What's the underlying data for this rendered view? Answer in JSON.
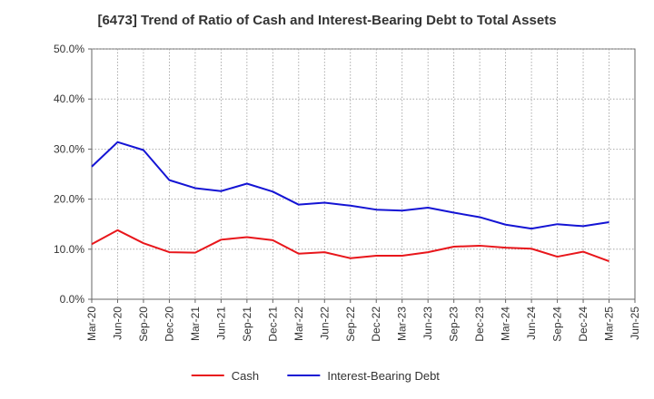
{
  "chart_data": {
    "type": "line",
    "title": "[6473]  Trend of Ratio of Cash and Interest-Bearing Debt to Total Assets",
    "xlabel": "",
    "ylabel": "",
    "categories": [
      "Mar-20",
      "Jun-20",
      "Sep-20",
      "Dec-20",
      "Mar-21",
      "Jun-21",
      "Sep-21",
      "Dec-21",
      "Mar-22",
      "Jun-22",
      "Sep-22",
      "Dec-22",
      "Mar-23",
      "Jun-23",
      "Sep-23",
      "Dec-23",
      "Mar-24",
      "Jun-24",
      "Sep-24",
      "Dec-24",
      "Mar-25",
      "Jun-25"
    ],
    "ylim": [
      0,
      50
    ],
    "yticks": [
      0,
      10,
      20,
      30,
      40,
      50
    ],
    "ytick_labels": [
      "0.0%",
      "10.0%",
      "20.0%",
      "30.0%",
      "40.0%",
      "50.0%"
    ],
    "grid": true,
    "legend_position": "bottom",
    "series": [
      {
        "name": "Cash",
        "color": "#e8161b",
        "values": [
          11.0,
          13.8,
          11.2,
          9.4,
          9.3,
          11.9,
          12.4,
          11.8,
          9.1,
          9.4,
          8.2,
          8.7,
          8.7,
          9.4,
          10.5,
          10.7,
          10.3,
          10.1,
          8.5,
          9.5,
          7.6,
          null
        ]
      },
      {
        "name": "Interest-Bearing Debt",
        "color": "#1414d4",
        "values": [
          26.5,
          31.4,
          29.8,
          23.8,
          22.2,
          21.6,
          23.1,
          21.5,
          18.9,
          19.3,
          18.7,
          17.9,
          17.7,
          18.3,
          17.3,
          16.4,
          14.9,
          14.1,
          15.0,
          14.6,
          15.4,
          null
        ]
      }
    ]
  }
}
